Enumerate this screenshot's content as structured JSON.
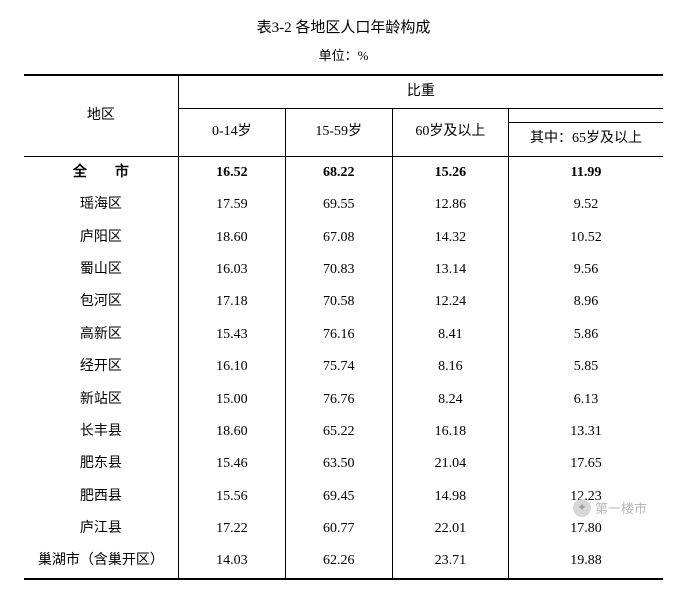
{
  "title": "表3-2  各地区人口年龄构成",
  "unit": "单位：%",
  "header": {
    "region": "地区",
    "proportion": "比重",
    "col1": "0-14岁",
    "col2": "15-59岁",
    "col3": "60岁及以上",
    "col4": "其中：65岁及以上"
  },
  "rows": [
    {
      "region": "全　　市",
      "c1": "16.52",
      "c2": "68.22",
      "c3": "15.26",
      "c4": "11.99",
      "bold": true,
      "spaced": false
    },
    {
      "region": "瑶海区",
      "c1": "17.59",
      "c2": "69.55",
      "c3": "12.86",
      "c4": "9.52"
    },
    {
      "region": "庐阳区",
      "c1": "18.60",
      "c2": "67.08",
      "c3": "14.32",
      "c4": "10.52"
    },
    {
      "region": "蜀山区",
      "c1": "16.03",
      "c2": "70.83",
      "c3": "13.14",
      "c4": "9.56"
    },
    {
      "region": "包河区",
      "c1": "17.18",
      "c2": "70.58",
      "c3": "12.24",
      "c4": "8.96"
    },
    {
      "region": "高新区",
      "c1": "15.43",
      "c2": "76.16",
      "c3": "8.41",
      "c4": "5.86"
    },
    {
      "region": "经开区",
      "c1": "16.10",
      "c2": "75.74",
      "c3": "8.16",
      "c4": "5.85"
    },
    {
      "region": "新站区",
      "c1": "15.00",
      "c2": "76.76",
      "c3": "8.24",
      "c4": "6.13"
    },
    {
      "region": "长丰县",
      "c1": "18.60",
      "c2": "65.22",
      "c3": "16.18",
      "c4": "13.31"
    },
    {
      "region": "肥东县",
      "c1": "15.46",
      "c2": "63.50",
      "c3": "21.04",
      "c4": "17.65"
    },
    {
      "region": "肥西县",
      "c1": "15.56",
      "c2": "69.45",
      "c3": "14.98",
      "c4": "12.23"
    },
    {
      "region": "庐江县",
      "c1": "17.22",
      "c2": "60.77",
      "c3": "22.01",
      "c4": "17.80"
    },
    {
      "region": "巢湖市（含巢开区）",
      "c1": "14.03",
      "c2": "62.26",
      "c3": "23.71",
      "c4": "19.88"
    }
  ],
  "watermark": {
    "text": "第一楼市"
  },
  "columns": {
    "region_width": 155,
    "c1_width": 110,
    "c2_width": 110,
    "c3_width": 120,
    "c4_width": 160
  },
  "style": {
    "font_family": "SimSun",
    "title_fontsize": 15,
    "unit_fontsize": 13,
    "cell_fontsize": 14,
    "outer_rule_width": 2,
    "inner_rule_width": 1,
    "text_color": "#000000",
    "background_color": "#ffffff",
    "watermark_color": "#b9b9b9"
  }
}
